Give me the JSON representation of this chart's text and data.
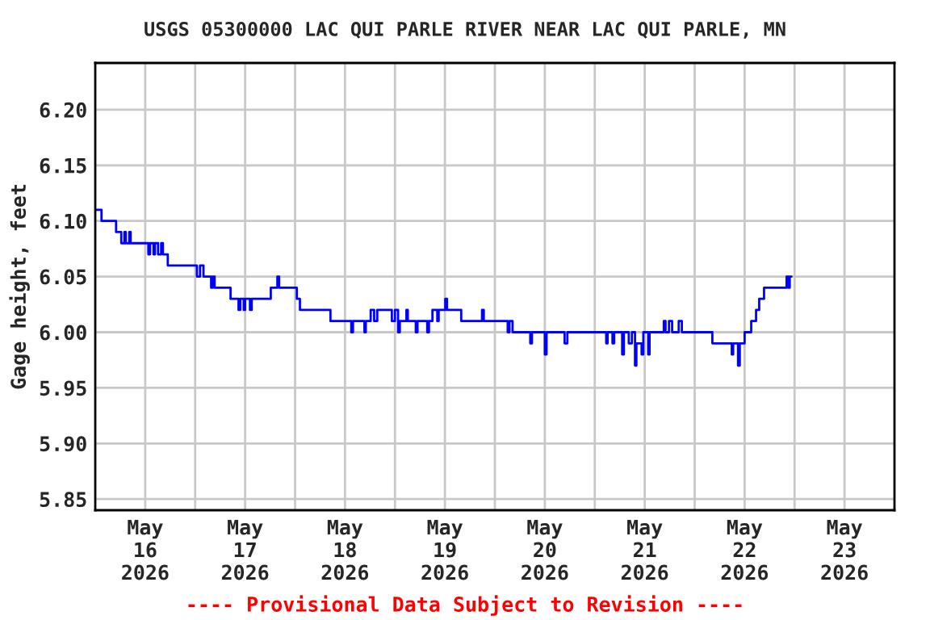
{
  "chart_data": {
    "type": "step",
    "title": "USGS 05300000 LAC QUI PARLE RIVER NEAR LAC QUI PARLE, MN",
    "ylabel": "Gage height, feet",
    "annotations": [
      "---- Provisional Data Subject to Revision ----"
    ],
    "grid": true,
    "legend": false,
    "marker": "none",
    "line_style": "solid",
    "xlim": [
      "2026-05-16T00:00",
      "2026-05-24T00:00"
    ],
    "xticks": [
      {
        "value": "2026-05-16T12:00",
        "label": "May\n16\n2026"
      },
      {
        "value": "2026-05-17T00:00",
        "label": null
      },
      {
        "value": "2026-05-17T12:00",
        "label": "May\n17\n2026"
      },
      {
        "value": "2026-05-18T00:00",
        "label": null
      },
      {
        "value": "2026-05-18T12:00",
        "label": "May\n18\n2026"
      },
      {
        "value": "2026-05-19T00:00",
        "label": null
      },
      {
        "value": "2026-05-19T12:00",
        "label": "May\n19\n2026"
      },
      {
        "value": "2026-05-20T00:00",
        "label": null
      },
      {
        "value": "2026-05-20T12:00",
        "label": "May\n20\n2026"
      },
      {
        "value": "2026-05-21T00:00",
        "label": null
      },
      {
        "value": "2026-05-21T12:00",
        "label": "May\n21\n2026"
      },
      {
        "value": "2026-05-22T00:00",
        "label": null
      },
      {
        "value": "2026-05-22T12:00",
        "label": "May\n22\n2026"
      },
      {
        "value": "2026-05-23T00:00",
        "label": null
      },
      {
        "value": "2026-05-23T12:00",
        "label": "May\n23\n2026"
      }
    ],
    "ylim": [
      5.84,
      6.242
    ],
    "yticks": [
      {
        "value": 5.85,
        "label": "5.85"
      },
      {
        "value": 5.9,
        "label": "5.90"
      },
      {
        "value": 5.95,
        "label": "5.95"
      },
      {
        "value": 6.0,
        "label": "6.00"
      },
      {
        "value": 6.05,
        "label": "6.05"
      },
      {
        "value": 6.1,
        "label": "6.10"
      },
      {
        "value": 6.15,
        "label": "6.15"
      },
      {
        "value": 6.2,
        "label": "6.20"
      }
    ],
    "series": [
      {
        "color": "#0000ff",
        "x": [
          "2026-05-16T00:00",
          "2026-05-16T01:30",
          "2026-05-16T05:00",
          "2026-05-16T06:15",
          "2026-05-16T07:00",
          "2026-05-16T07:20",
          "2026-05-16T08:10",
          "2026-05-16T08:30",
          "2026-05-16T12:45",
          "2026-05-16T13:10",
          "2026-05-16T14:00",
          "2026-05-16T14:20",
          "2026-05-16T15:05",
          "2026-05-16T15:50",
          "2026-05-16T16:15",
          "2026-05-16T17:25",
          "2026-05-17T00:25",
          "2026-05-17T01:10",
          "2026-05-17T02:00",
          "2026-05-17T03:50",
          "2026-05-17T04:15",
          "2026-05-17T04:40",
          "2026-05-17T08:30",
          "2026-05-17T10:25",
          "2026-05-17T10:50",
          "2026-05-17T11:40",
          "2026-05-17T12:00",
          "2026-05-17T13:10",
          "2026-05-17T13:35",
          "2026-05-17T18:10",
          "2026-05-17T19:45",
          "2026-05-17T20:10",
          "2026-05-18T00:25",
          "2026-05-18T01:10",
          "2026-05-18T08:30",
          "2026-05-18T13:30",
          "2026-05-18T13:55",
          "2026-05-18T16:40",
          "2026-05-18T17:00",
          "2026-05-18T18:10",
          "2026-05-18T19:00",
          "2026-05-18T19:45",
          "2026-05-18T23:15",
          "2026-05-19T00:00",
          "2026-05-19T00:45",
          "2026-05-19T01:10",
          "2026-05-19T02:45",
          "2026-05-19T03:05",
          "2026-05-19T05:00",
          "2026-05-19T05:25",
          "2026-05-19T07:45",
          "2026-05-19T08:10",
          "2026-05-19T09:00",
          "2026-05-19T10:10",
          "2026-05-19T10:30",
          "2026-05-19T12:05",
          "2026-05-19T12:30",
          "2026-05-19T15:55",
          "2026-05-19T20:55",
          "2026-05-19T21:20",
          "2026-05-20T03:05",
          "2026-05-20T03:30",
          "2026-05-20T04:15",
          "2026-05-20T08:30",
          "2026-05-20T08:55",
          "2026-05-20T12:00",
          "2026-05-20T12:25",
          "2026-05-20T16:45",
          "2026-05-20T17:25",
          "2026-05-21T02:45",
          "2026-05-21T03:05",
          "2026-05-21T04:15",
          "2026-05-21T04:40",
          "2026-05-21T06:35",
          "2026-05-21T07:00",
          "2026-05-21T08:10",
          "2026-05-21T08:55",
          "2026-05-21T09:40",
          "2026-05-21T10:00",
          "2026-05-21T11:15",
          "2026-05-21T11:40",
          "2026-05-21T12:50",
          "2026-05-21T13:10",
          "2026-05-21T16:35",
          "2026-05-21T17:00",
          "2026-05-21T17:50",
          "2026-05-21T18:35",
          "2026-05-21T20:10",
          "2026-05-21T20:55",
          "2026-05-22T04:15",
          "2026-05-22T08:55",
          "2026-05-22T09:15",
          "2026-05-22T10:25",
          "2026-05-22T10:50",
          "2026-05-22T12:00",
          "2026-05-22T13:35",
          "2026-05-22T14:45",
          "2026-05-22T15:30",
          "2026-05-22T16:40",
          "2026-05-22T22:05",
          "2026-05-22T22:30",
          "2026-05-22T22:50",
          "2026-05-22T23:15"
        ],
        "values": [
          6.11,
          6.1,
          6.09,
          6.08,
          6.09,
          6.08,
          6.09,
          6.08,
          6.07,
          6.08,
          6.07,
          6.08,
          6.07,
          6.08,
          6.07,
          6.06,
          6.05,
          6.06,
          6.05,
          6.04,
          6.05,
          6.04,
          6.03,
          6.02,
          6.03,
          6.02,
          6.03,
          6.02,
          6.03,
          6.04,
          6.05,
          6.04,
          6.03,
          6.02,
          6.01,
          6.0,
          6.01,
          6.0,
          6.01,
          6.02,
          6.01,
          6.02,
          6.01,
          6.02,
          6.0,
          6.01,
          6.02,
          6.01,
          6.0,
          6.01,
          6.0,
          6.01,
          6.02,
          6.01,
          6.02,
          6.03,
          6.02,
          6.01,
          6.02,
          6.01,
          6.0,
          6.01,
          6.0,
          5.99,
          6.0,
          5.98,
          6.0,
          5.99,
          6.0,
          5.99,
          6.0,
          5.99,
          6.0,
          5.98,
          6.0,
          5.99,
          6.0,
          5.97,
          5.99,
          5.98,
          6.0,
          5.98,
          6.0,
          6.01,
          6.0,
          6.01,
          6.0,
          6.01,
          6.0,
          5.99,
          5.98,
          5.99,
          5.97,
          5.99,
          6.0,
          6.01,
          6.02,
          6.03,
          6.04,
          6.05,
          6.04,
          6.05,
          6.05
        ]
      }
    ]
  }
}
